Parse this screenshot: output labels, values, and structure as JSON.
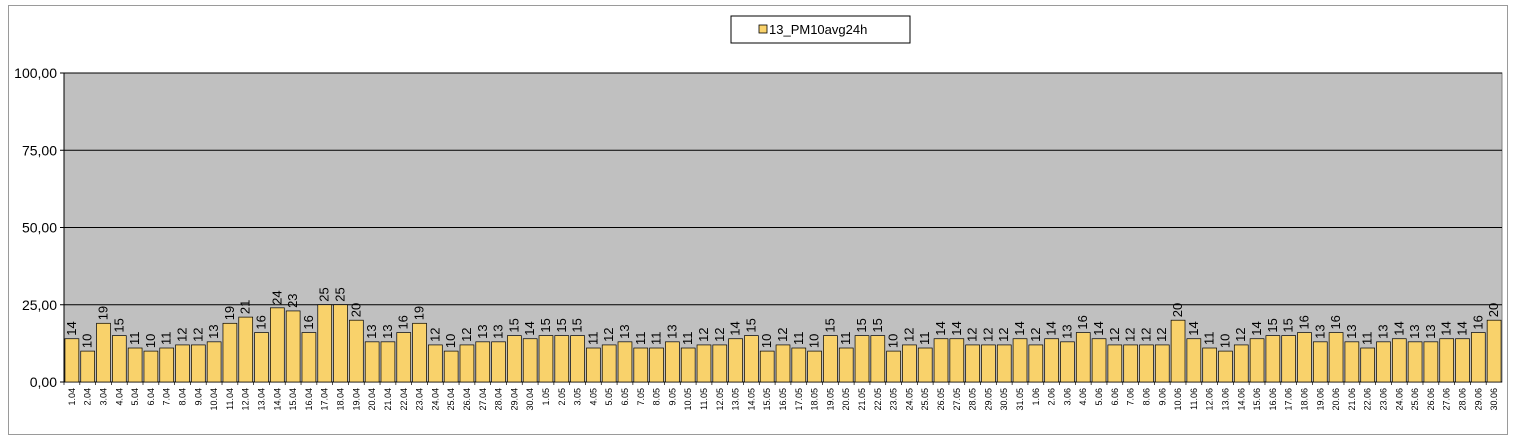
{
  "chart_data": {
    "type": "bar",
    "title": "",
    "xlabel": "",
    "ylabel": "",
    "ylim": [
      0,
      100
    ],
    "yticks": [
      "0,00",
      "25,00",
      "50,00",
      "75,00",
      "100,00"
    ],
    "grid": true,
    "legend_position": "top-center",
    "colors": {
      "bar": "#f9d26b",
      "bar_stroke": "#000000",
      "plot_bg": "#c0c0c0",
      "gridline": "#000000"
    },
    "categories": [
      "1.04",
      "2.04",
      "3.04",
      "4.04",
      "5.04",
      "6.04",
      "7.04",
      "8.04",
      "9.04",
      "10.04",
      "11.04",
      "12.04",
      "13.04",
      "14.04",
      "15.04",
      "16.04",
      "17.04",
      "18.04",
      "19.04",
      "20.04",
      "21.04",
      "22.04",
      "23.04",
      "24.04",
      "25.04",
      "26.04",
      "27.04",
      "28.04",
      "29.04",
      "30.04",
      "1.05",
      "2.05",
      "3.05",
      "4.05",
      "5.05",
      "6.05",
      "7.05",
      "8.05",
      "9.05",
      "10.05",
      "11.05",
      "12.05",
      "13.05",
      "14.05",
      "15.05",
      "16.05",
      "17.05",
      "18.05",
      "19.05",
      "20.05",
      "21.05",
      "22.05",
      "23.05",
      "24.05",
      "25.05",
      "26.05",
      "27.05",
      "28.05",
      "29.05",
      "30.05",
      "31.05",
      "1.06",
      "2.06",
      "3.06",
      "4.06",
      "5.06",
      "6.06",
      "7.06",
      "8.06",
      "9.06",
      "10.06",
      "11.06",
      "12.06",
      "13.06",
      "14.06",
      "15.06",
      "16.06",
      "17.06",
      "18.06",
      "19.06",
      "20.06",
      "21.06",
      "22.06",
      "23.06",
      "24.06",
      "25.06",
      "26.06",
      "27.06",
      "28.06",
      "29.06",
      "30.06"
    ],
    "series": [
      {
        "name": "13_PM10avg24h",
        "values": [
          14,
          10,
          19,
          15,
          11,
          10,
          11,
          12,
          12,
          13,
          19,
          21,
          16,
          24,
          23,
          16,
          25,
          25,
          20,
          13,
          13,
          16,
          19,
          12,
          10,
          12,
          13,
          13,
          15,
          14,
          15,
          15,
          15,
          11,
          12,
          13,
          11,
          11,
          13,
          11,
          12,
          12,
          14,
          15,
          10,
          12,
          11,
          10,
          15,
          11,
          15,
          15,
          10,
          12,
          11,
          14,
          14,
          12,
          12,
          12,
          14,
          12,
          14,
          13,
          16,
          14,
          12,
          12,
          12,
          12,
          20,
          14,
          11,
          10,
          12,
          14,
          15,
          15,
          16,
          13,
          16,
          13,
          11,
          13,
          14,
          13,
          13,
          14,
          14,
          16,
          20
        ]
      }
    ]
  }
}
